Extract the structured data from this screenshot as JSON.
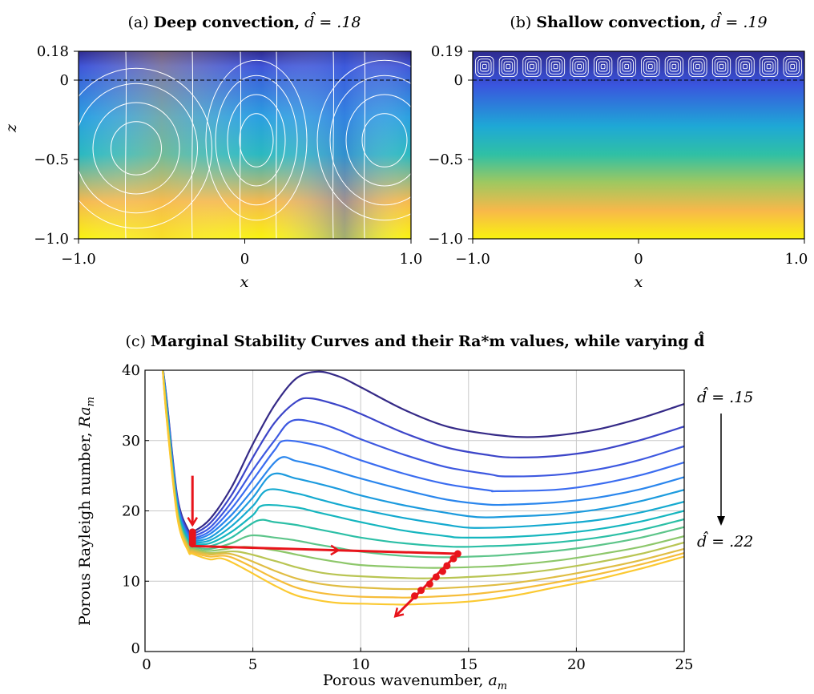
{
  "chart_data": [
    {
      "type": "heatmap",
      "panel": "(a)",
      "title_prefix": "(a)",
      "title_bold": "Deep convection,",
      "title_suffix": "d̂ = .18",
      "xlabel": "x",
      "ylabel": "z",
      "xlim": [
        -1.0,
        1.0
      ],
      "ylim": [
        -1.0,
        0.18
      ],
      "x_ticks": [
        "−1.0",
        "0",
        "1.0"
      ],
      "y_ticks": [
        "0.18",
        "0",
        "−0.5",
        "−1.0"
      ],
      "dashed_interface_z": 0,
      "colormap": [
        "#2e2a8f",
        "#3f5fd8",
        "#1ea8d6",
        "#3cc3a0",
        "#f8b84a",
        "#f9f20f"
      ],
      "streamlines": "white"
    },
    {
      "type": "heatmap",
      "panel": "(b)",
      "title_prefix": "(b)",
      "title_bold": "Shallow convection,",
      "title_suffix": "d̂ = .19",
      "xlabel": "x",
      "xlim": [
        -1.0,
        1.0
      ],
      "ylim": [
        -1.0,
        0.19
      ],
      "x_ticks": [
        "−1.0",
        "0",
        "1.0"
      ],
      "y_ticks": [
        "0.19",
        "0",
        "−0.5",
        "−1.0"
      ],
      "dashed_interface_z": 0,
      "colormap": [
        "#2e2a8f",
        "#3f5fd8",
        "#1ea8d6",
        "#3cc3a0",
        "#f8b84a",
        "#f9f20f"
      ],
      "cells": 14
    },
    {
      "type": "line",
      "panel": "(c)",
      "title_prefix": "(c)",
      "title_bold": "Marginal Stability Curves and their Ra*m values, while varying d̂",
      "xlabel": "Porous wavenumber, a_m",
      "xlabel_text": "Porous wavenumber, ",
      "xlabel_sym": "a",
      "xlabel_sub": "m",
      "ylabel_text": "Porous Rayleigh number, ",
      "ylabel_sym": "Ra",
      "ylabel_sub": "m",
      "xlim": [
        0,
        25
      ],
      "ylim": [
        0,
        40
      ],
      "x_ticks": [
        0,
        5,
        10,
        15,
        20,
        25
      ],
      "y_ticks": [
        0,
        10,
        20,
        30,
        40
      ],
      "grid": true,
      "annot_top": "d̂ = .15",
      "annot_bottom": "d̂ = .22",
      "series_colors": [
        "#352a87",
        "#3c45c8",
        "#3d58e0",
        "#3a6cf0",
        "#2a86ed",
        "#1c9bde",
        "#15aad0",
        "#16b6bf",
        "#2cbfa6",
        "#5dc58a",
        "#8dc76a",
        "#b9c553",
        "#e0bd43",
        "#f6bd3a",
        "#fbc931"
      ],
      "series": [
        {
          "d_hat": 0.15,
          "x": [
            0.8,
            1.0,
            1.5,
            2.0,
            2.2,
            3.0,
            4.0,
            5.0,
            6.0,
            7.0,
            8.0,
            9.0,
            10.0,
            12.0,
            14.0,
            16.0,
            17.5,
            19.0,
            21.0,
            23.0,
            25.0
          ],
          "y": [
            41.0,
            36.0,
            22.0,
            17.3,
            17.0,
            18.8,
            23.3,
            29.5,
            35.0,
            38.8,
            39.8,
            39.1,
            37.6,
            34.4,
            32.0,
            30.9,
            30.5,
            30.7,
            31.6,
            33.2,
            35.2
          ]
        },
        {
          "d_hat": 0.155,
          "x": [
            0.8,
            1.0,
            1.5,
            2.0,
            2.2,
            3.0,
            4.0,
            5.0,
            6.0,
            7.0,
            7.7,
            9.0,
            10.0,
            12.0,
            14.0,
            16.0,
            17.1,
            19.0,
            21.0,
            23.0,
            25.0
          ],
          "y": [
            41.0,
            35.8,
            21.7,
            17.0,
            16.7,
            18.2,
            22.2,
            27.6,
            32.5,
            35.5,
            36.0,
            35.0,
            33.8,
            31.1,
            29.0,
            27.9,
            27.6,
            27.8,
            28.6,
            30.1,
            32.0
          ]
        },
        {
          "d_hat": 0.16,
          "x": [
            0.8,
            1.0,
            1.5,
            2.0,
            2.2,
            3.0,
            4.0,
            5.0,
            6.0,
            6.8,
            8.0,
            9.0,
            10.0,
            12.0,
            14.0,
            16.0,
            16.7,
            19.0,
            21.0,
            23.0,
            25.0
          ],
          "y": [
            41.0,
            35.6,
            21.4,
            16.7,
            16.4,
            17.6,
            21.2,
            25.8,
            30.0,
            32.8,
            32.5,
            31.5,
            30.2,
            28.0,
            26.2,
            25.2,
            24.9,
            25.1,
            25.9,
            27.3,
            29.2
          ]
        },
        {
          "d_hat": 0.165,
          "x": [
            0.8,
            1.0,
            1.5,
            2.0,
            2.2,
            3.0,
            4.0,
            5.0,
            6.0,
            6.5,
            8.0,
            9.0,
            10.0,
            12.0,
            14.0,
            16.0,
            16.3,
            19.0,
            21.0,
            23.0,
            25.0
          ],
          "y": [
            41.0,
            35.4,
            21.2,
            16.5,
            16.1,
            17.1,
            20.3,
            24.4,
            28.6,
            30.0,
            29.3,
            28.3,
            27.2,
            25.3,
            23.8,
            22.9,
            22.8,
            23.0,
            23.8,
            25.1,
            26.9
          ]
        },
        {
          "d_hat": 0.17,
          "x": [
            0.8,
            1.0,
            1.5,
            2.0,
            2.2,
            3.0,
            4.0,
            5.0,
            6.2,
            7.0,
            8.0,
            9.0,
            10.0,
            12.0,
            14.0,
            15.9,
            17.0,
            19.0,
            21.0,
            23.0,
            25.0
          ],
          "y": [
            41.0,
            35.2,
            21.0,
            16.3,
            15.9,
            16.7,
            19.4,
            23.0,
            27.4,
            27.1,
            26.4,
            25.5,
            24.6,
            23.0,
            21.6,
            20.9,
            20.9,
            21.2,
            21.9,
            23.1,
            24.8
          ]
        },
        {
          "d_hat": 0.175,
          "x": [
            0.8,
            1.0,
            1.5,
            2.0,
            2.2,
            3.0,
            4.0,
            5.0,
            5.9,
            7.0,
            8.0,
            9.0,
            10.0,
            12.0,
            14.0,
            15.5,
            17.0,
            19.0,
            21.0,
            23.0,
            25.0
          ],
          "y": [
            41.0,
            35.0,
            20.8,
            16.1,
            15.7,
            16.2,
            18.6,
            21.9,
            25.2,
            24.6,
            23.9,
            23.1,
            22.2,
            20.8,
            19.7,
            19.1,
            19.2,
            19.5,
            20.2,
            21.4,
            23.0
          ]
        },
        {
          "d_hat": 0.18,
          "x": [
            0.8,
            1.0,
            1.5,
            2.0,
            2.2,
            3.0,
            4.0,
            5.0,
            5.7,
            7.0,
            8.0,
            9.0,
            10.0,
            12.0,
            14.0,
            15.1,
            17.0,
            19.0,
            21.0,
            23.0,
            25.0
          ],
          "y": [
            41.0,
            34.8,
            20.6,
            15.9,
            15.5,
            15.8,
            17.8,
            20.7,
            23.0,
            22.5,
            21.7,
            20.9,
            20.2,
            19.0,
            18.0,
            17.6,
            17.7,
            18.1,
            18.7,
            19.8,
            21.3
          ]
        },
        {
          "d_hat": 0.185,
          "x": [
            0.8,
            1.0,
            1.5,
            2.0,
            2.2,
            3.0,
            4.0,
            5.0,
            5.5,
            7.0,
            8.0,
            9.0,
            10.0,
            12.0,
            14.0,
            14.7,
            17.0,
            19.0,
            21.0,
            23.0,
            25.0
          ],
          "y": [
            41.0,
            34.6,
            20.4,
            15.7,
            15.3,
            15.4,
            17.0,
            19.4,
            20.8,
            20.5,
            19.8,
            19.1,
            18.4,
            17.2,
            16.4,
            16.2,
            16.3,
            16.7,
            17.4,
            18.5,
            20.0
          ]
        },
        {
          "d_hat": 0.19,
          "x": [
            0.8,
            1.0,
            1.5,
            2.0,
            2.2,
            3.0,
            4.0,
            5.2,
            6.0,
            7.0,
            8.0,
            9.0,
            10.0,
            12.0,
            14.3,
            16.0,
            17.0,
            19.0,
            21.0,
            23.0,
            25.0
          ],
          "y": [
            41.0,
            34.4,
            20.2,
            15.5,
            15.1,
            15.0,
            16.2,
            18.6,
            18.4,
            18.0,
            17.4,
            16.8,
            16.2,
            15.4,
            14.9,
            15.0,
            15.1,
            15.5,
            16.2,
            17.3,
            18.8
          ]
        },
        {
          "d_hat": 0.195,
          "x": [
            0.8,
            1.0,
            1.5,
            2.0,
            2.2,
            3.0,
            4.0,
            4.9,
            6.0,
            7.0,
            8.0,
            9.0,
            10.0,
            12.0,
            13.9,
            16.0,
            17.0,
            19.0,
            21.0,
            23.0,
            25.0
          ],
          "y": [
            41.0,
            34.2,
            20.0,
            15.3,
            14.9,
            14.6,
            15.4,
            16.5,
            16.2,
            15.8,
            15.2,
            14.7,
            14.2,
            13.6,
            13.4,
            13.6,
            13.8,
            14.3,
            15.1,
            16.2,
            17.7
          ]
        },
        {
          "d_hat": 0.2,
          "x": [
            0.8,
            1.0,
            1.5,
            2.0,
            2.2,
            3.0,
            4.6,
            6.0,
            7.0,
            8.0,
            9.0,
            10.0,
            12.0,
            13.5,
            16.0,
            17.0,
            19.0,
            21.0,
            23.0,
            25.0
          ],
          "y": [
            41.0,
            34.0,
            19.8,
            15.1,
            14.7,
            14.3,
            14.9,
            14.4,
            13.8,
            13.2,
            12.7,
            12.3,
            12.0,
            11.9,
            12.1,
            12.3,
            12.9,
            13.8,
            14.9,
            16.4
          ]
        },
        {
          "d_hat": 0.205,
          "x": [
            0.8,
            1.0,
            1.5,
            2.0,
            2.2,
            3.0,
            4.3,
            6.0,
            7.0,
            8.0,
            9.0,
            10.0,
            11.5,
            13.1,
            15.0,
            17.0,
            19.0,
            21.0,
            23.0,
            25.0
          ],
          "y": [
            41.0,
            33.8,
            19.6,
            14.9,
            14.5,
            14.0,
            14.2,
            12.9,
            12.0,
            11.3,
            10.9,
            10.7,
            10.5,
            10.4,
            10.6,
            11.0,
            11.7,
            12.7,
            13.9,
            15.5
          ]
        },
        {
          "d_hat": 0.21,
          "x": [
            0.8,
            1.0,
            1.5,
            2.0,
            2.2,
            3.0,
            4.1,
            6.0,
            7.0,
            8.0,
            9.0,
            10.0,
            11.5,
            12.8,
            15.0,
            17.0,
            19.0,
            21.0,
            23.0,
            25.0
          ],
          "y": [
            41.0,
            33.6,
            19.4,
            14.7,
            14.3,
            13.8,
            13.8,
            11.5,
            10.4,
            9.7,
            9.3,
            9.1,
            8.9,
            8.9,
            9.2,
            9.7,
            10.6,
            11.7,
            13.0,
            14.6
          ]
        },
        {
          "d_hat": 0.215,
          "x": [
            0.8,
            1.0,
            1.5,
            2.0,
            2.2,
            3.0,
            4.0,
            6.0,
            7.0,
            8.0,
            9.0,
            10.0,
            11.5,
            12.6,
            15.0,
            17.0,
            19.0,
            21.0,
            23.0,
            25.0
          ],
          "y": [
            41.0,
            33.4,
            19.2,
            14.5,
            14.1,
            13.5,
            13.4,
            10.4,
            9.1,
            8.4,
            8.0,
            7.8,
            7.7,
            7.7,
            8.1,
            8.8,
            9.8,
            11.0,
            12.4,
            14.0
          ]
        },
        {
          "d_hat": 0.22,
          "x": [
            0.8,
            1.0,
            1.5,
            2.0,
            2.2,
            3.0,
            3.8,
            6.0,
            7.0,
            8.0,
            9.0,
            10.0,
            11.5,
            12.4,
            15.0,
            17.0,
            19.0,
            21.0,
            23.0,
            25.0
          ],
          "y": [
            41.0,
            33.2,
            19.0,
            14.3,
            13.9,
            13.1,
            13.0,
            9.4,
            8.0,
            7.3,
            6.9,
            6.8,
            6.7,
            6.7,
            7.1,
            7.9,
            9.1,
            10.3,
            11.8,
            13.5
          ]
        }
      ],
      "ra_star_markers": {
        "color": "#e8141b",
        "deep_branch": [
          [
            2.2,
            17.0
          ],
          [
            2.2,
            16.7
          ],
          [
            2.2,
            16.4
          ],
          [
            2.2,
            16.1
          ],
          [
            2.2,
            15.9
          ],
          [
            2.2,
            15.7
          ],
          [
            2.2,
            15.5
          ],
          [
            2.2,
            15.3
          ]
        ],
        "shallow_branch": [
          [
            14.5,
            13.9
          ],
          [
            14.3,
            13.2
          ],
          [
            14.0,
            12.2
          ],
          [
            13.8,
            11.4
          ],
          [
            13.5,
            10.6
          ],
          [
            13.2,
            9.6
          ],
          [
            12.8,
            8.7
          ],
          [
            12.5,
            7.9
          ]
        ],
        "arrow_down": [
          [
            2.2,
            25.0
          ],
          [
            2.2,
            18.0
          ]
        ],
        "arrow_right": [
          [
            2.2,
            15.0
          ],
          [
            14.5,
            13.9
          ]
        ],
        "arrow_out": [
          [
            14.5,
            13.9
          ],
          [
            11.6,
            5.0
          ]
        ]
      }
    }
  ]
}
